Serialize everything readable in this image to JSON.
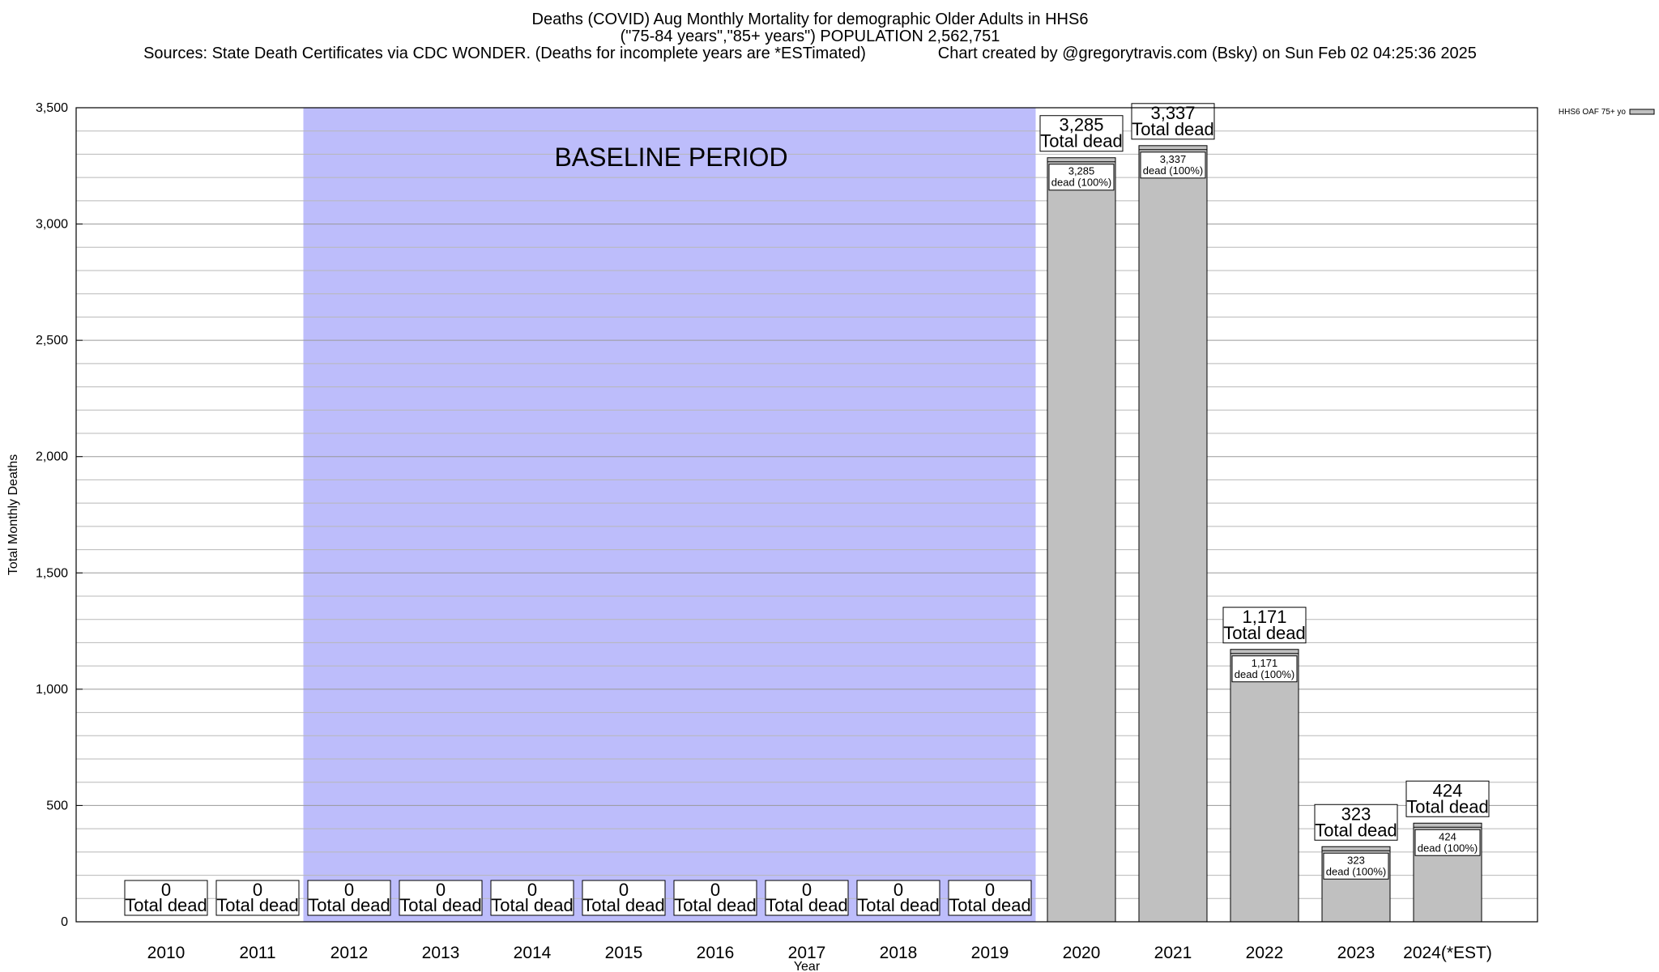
{
  "header": {
    "title": "Deaths (COVID) Aug Monthly Mortality for demographic Older Adults in HHS6",
    "subtitle": "(\"75-84 years\",\"85+ years\") POPULATION 2,562,751",
    "sources": "Sources: State Death Certificates via CDC WONDER. (Deaths for incomplete years are *ESTimated)",
    "credit": "Chart created by @gregorytravis.com (Bsky) on Sun Feb 02 04:25:36 2025"
  },
  "chart_data": {
    "type": "bar",
    "xlabel": "Year",
    "ylabel": "Total Monthly Deaths",
    "ylim": [
      0,
      3500
    ],
    "yticks": [
      0,
      500,
      1000,
      1500,
      2000,
      2500,
      3000,
      3500
    ],
    "ytick_labels": [
      "0",
      "500",
      "1,000",
      "1,500",
      "2,000",
      "2,500",
      "3,000",
      "3,500"
    ],
    "categories": [
      "2010",
      "2011",
      "2012",
      "2013",
      "2014",
      "2015",
      "2016",
      "2017",
      "2018",
      "2019",
      "2020",
      "2021",
      "2022",
      "2023",
      "2024(*EST)"
    ],
    "series": [
      {
        "name": "HHS6 OAF 75+ yo",
        "color": "#c0c0c0",
        "values": [
          0,
          0,
          0,
          0,
          0,
          0,
          0,
          0,
          0,
          0,
          3285,
          3337,
          1171,
          323,
          424
        ]
      }
    ],
    "total_labels": [
      "0",
      "0",
      "0",
      "0",
      "0",
      "0",
      "0",
      "0",
      "0",
      "0",
      "3,285",
      "3,337",
      "1,171",
      "323",
      "424"
    ],
    "total_suffix": "Total dead",
    "inner_labels": [
      "",
      "",
      "",
      "",
      "",
      "",
      "",
      "",
      "",
      "",
      "3,285",
      "3,337",
      "1,171",
      "323",
      "424"
    ],
    "inner_suffix": "dead (100%)",
    "baseline": {
      "label": "BASELINE PERIOD",
      "start": "2012",
      "end": "2019",
      "color": "#bdbdfb"
    },
    "grid": true,
    "legend_position": "top-right"
  }
}
